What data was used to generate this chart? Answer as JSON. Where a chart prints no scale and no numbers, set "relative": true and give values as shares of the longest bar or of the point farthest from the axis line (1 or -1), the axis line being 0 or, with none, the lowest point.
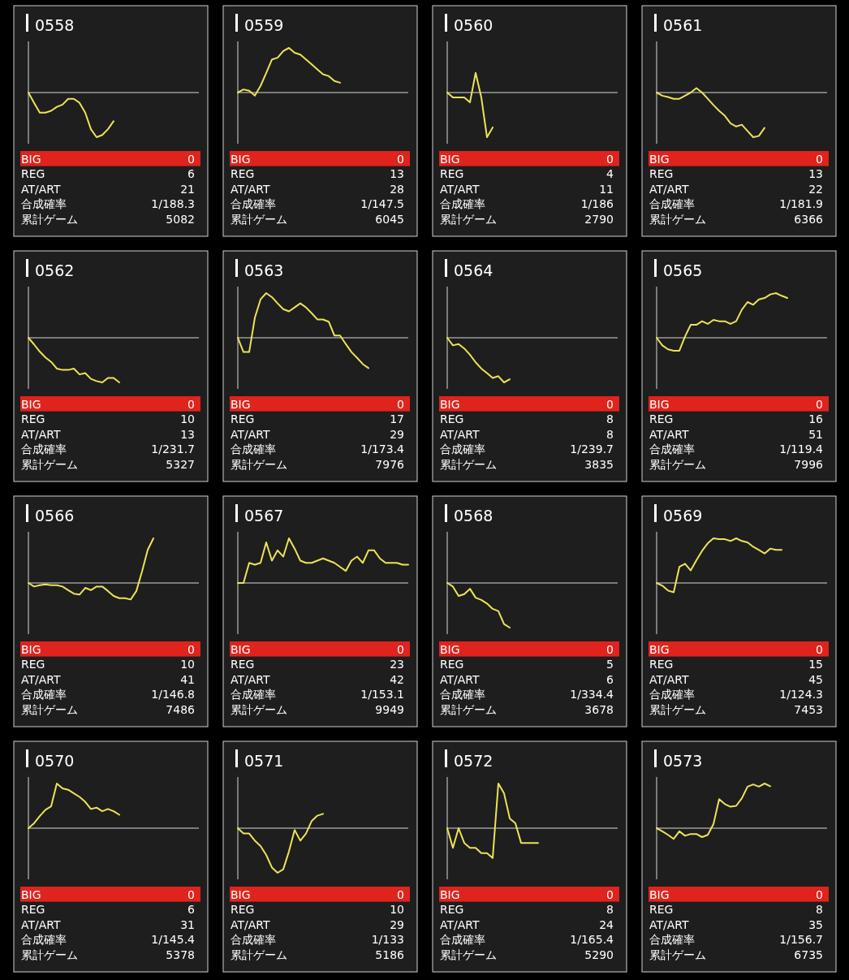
{
  "chart_data": [
    {
      "type": "line",
      "title": "0558",
      "relative": true,
      "color": "#ece357",
      "categories": [
        null,
        null,
        null,
        null,
        null,
        null,
        null,
        null,
        null,
        null,
        null,
        null,
        null,
        null,
        null,
        null,
        null,
        null,
        null,
        null,
        null,
        null,
        null,
        null,
        null,
        null,
        null,
        null,
        null,
        null,
        null
      ],
      "values": [
        0,
        -0.23,
        -0.45,
        -0.45,
        -0.41,
        -0.32,
        -0.27,
        -0.14,
        -0.14,
        -0.23,
        -0.45,
        -0.82,
        -1,
        -0.95,
        -0.82,
        -0.64,
        null,
        null,
        null,
        null,
        null,
        null,
        null,
        null,
        null,
        null,
        null,
        null,
        null,
        null,
        null
      ],
      "annotations": [
        "BIG",
        "0",
        "REG",
        "6",
        "AT/ART",
        "21",
        "合成確率",
        "1/188.3",
        "累計ゲーム",
        "5082"
      ]
    },
    {
      "type": "line",
      "title": "0559",
      "relative": true,
      "color": "#ece357",
      "categories": [
        null,
        null,
        null,
        null,
        null,
        null,
        null,
        null,
        null,
        null,
        null,
        null,
        null,
        null,
        null,
        null,
        null,
        null,
        null,
        null,
        null,
        null,
        null,
        null,
        null,
        null,
        null,
        null,
        null,
        null,
        null
      ],
      "values": [
        0,
        0.07,
        0.04,
        -0.07,
        0.15,
        0.44,
        0.74,
        0.78,
        0.93,
        1,
        0.89,
        0.85,
        0.74,
        0.63,
        0.52,
        0.41,
        0.37,
        0.26,
        0.22,
        null,
        null,
        null,
        null,
        null,
        null,
        null,
        null,
        null,
        null,
        null,
        null
      ],
      "annotations": [
        "BIG",
        "0",
        "REG",
        "13",
        "AT/ART",
        "28",
        "合成確率",
        "1/147.5",
        "累計ゲーム",
        "6045"
      ]
    },
    {
      "type": "line",
      "title": "0560",
      "relative": true,
      "color": "#ece357",
      "categories": [
        null,
        null,
        null,
        null,
        null,
        null,
        null,
        null,
        null,
        null,
        null,
        null,
        null,
        null,
        null,
        null,
        null,
        null,
        null,
        null,
        null,
        null,
        null,
        null,
        null,
        null,
        null,
        null,
        null,
        null,
        null
      ],
      "values": [
        0,
        -0.11,
        -0.11,
        -0.11,
        -0.22,
        0.44,
        -0.11,
        -1,
        -0.78,
        null,
        null,
        null,
        null,
        null,
        null,
        null,
        null,
        null,
        null,
        null,
        null,
        null,
        null,
        null,
        null,
        null,
        null,
        null,
        null,
        null,
        null
      ],
      "annotations": [
        "BIG",
        "0",
        "REG",
        "4",
        "AT/ART",
        "11",
        "合成確率",
        "1/186",
        "累計ゲーム",
        "2790"
      ]
    },
    {
      "type": "line",
      "title": "0561",
      "relative": true,
      "color": "#ece357",
      "categories": [
        null,
        null,
        null,
        null,
        null,
        null,
        null,
        null,
        null,
        null,
        null,
        null,
        null,
        null,
        null,
        null,
        null,
        null,
        null,
        null,
        null,
        null,
        null,
        null,
        null,
        null,
        null,
        null,
        null,
        null,
        null
      ],
      "values": [
        0,
        -0.07,
        -0.1,
        -0.14,
        -0.14,
        -0.07,
        0,
        0.1,
        0,
        -0.14,
        -0.28,
        -0.41,
        -0.52,
        -0.69,
        -0.76,
        -0.72,
        -0.86,
        -1,
        -0.97,
        -0.79,
        null,
        null,
        null,
        null,
        null,
        null,
        null,
        null,
        null,
        null,
        null
      ],
      "annotations": [
        "BIG",
        "0",
        "REG",
        "13",
        "AT/ART",
        "22",
        "合成確率",
        "1/181.9",
        "累計ゲーム",
        "6366"
      ]
    },
    {
      "type": "line",
      "title": "0562",
      "relative": true,
      "color": "#ece357",
      "categories": [
        null,
        null,
        null,
        null,
        null,
        null,
        null,
        null,
        null,
        null,
        null,
        null,
        null,
        null,
        null,
        null,
        null,
        null,
        null,
        null,
        null,
        null,
        null,
        null,
        null,
        null,
        null,
        null,
        null,
        null,
        null
      ],
      "values": [
        0,
        -0.15,
        -0.31,
        -0.44,
        -0.54,
        -0.69,
        -0.72,
        -0.72,
        -0.69,
        -0.82,
        -0.79,
        -0.92,
        -0.97,
        -1,
        -0.9,
        -0.9,
        -1,
        null,
        null,
        null,
        null,
        null,
        null,
        null,
        null,
        null,
        null,
        null,
        null,
        null,
        null
      ],
      "annotations": [
        "BIG",
        "0",
        "REG",
        "10",
        "AT/ART",
        "13",
        "合成確率",
        "1/231.7",
        "累計ゲーム",
        "5327"
      ]
    },
    {
      "type": "line",
      "title": "0563",
      "relative": true,
      "color": "#ece357",
      "categories": [
        null,
        null,
        null,
        null,
        null,
        null,
        null,
        null,
        null,
        null,
        null,
        null,
        null,
        null,
        null,
        null,
        null,
        null,
        null,
        null,
        null,
        null,
        null,
        null,
        null,
        null,
        null,
        null,
        null,
        null,
        null
      ],
      "values": [
        0,
        -0.32,
        -0.32,
        0.45,
        0.86,
        1,
        0.91,
        0.77,
        0.64,
        0.59,
        0.68,
        0.77,
        0.68,
        0.55,
        0.41,
        0.41,
        0.36,
        0.05,
        0.05,
        -0.14,
        -0.32,
        -0.45,
        -0.59,
        -0.68,
        null,
        null,
        null,
        null,
        null,
        null,
        null
      ],
      "annotations": [
        "BIG",
        "0",
        "REG",
        "17",
        "AT/ART",
        "29",
        "合成確率",
        "1/173.4",
        "累計ゲーム",
        "7976"
      ]
    },
    {
      "type": "line",
      "title": "0564",
      "relative": true,
      "color": "#ece357",
      "categories": [
        null,
        null,
        null,
        null,
        null,
        null,
        null,
        null,
        null,
        null,
        null,
        null,
        null,
        null,
        null,
        null,
        null,
        null,
        null,
        null,
        null,
        null,
        null,
        null,
        null,
        null,
        null,
        null,
        null,
        null,
        null
      ],
      "values": [
        0,
        -0.17,
        -0.14,
        -0.24,
        -0.38,
        -0.55,
        -0.69,
        -0.79,
        -0.9,
        -0.86,
        -1,
        -0.93,
        null,
        null,
        null,
        null,
        null,
        null,
        null,
        null,
        null,
        null,
        null,
        null,
        null,
        null,
        null,
        null,
        null,
        null,
        null
      ],
      "annotations": [
        "BIG",
        "0",
        "REG",
        "8",
        "AT/ART",
        "8",
        "合成確率",
        "1/239.7",
        "累計ゲーム",
        "3835"
      ]
    },
    {
      "type": "line",
      "title": "0565",
      "relative": true,
      "color": "#ece357",
      "categories": [
        null,
        null,
        null,
        null,
        null,
        null,
        null,
        null,
        null,
        null,
        null,
        null,
        null,
        null,
        null,
        null,
        null,
        null,
        null,
        null,
        null,
        null,
        null,
        null,
        null,
        null,
        null,
        null,
        null,
        null,
        null
      ],
      "values": [
        0,
        -0.17,
        -0.26,
        -0.29,
        -0.29,
        0.03,
        0.29,
        0.29,
        0.37,
        0.31,
        0.4,
        0.37,
        0.37,
        0.31,
        0.37,
        0.63,
        0.8,
        0.74,
        0.86,
        0.89,
        0.97,
        1,
        0.94,
        0.89,
        null,
        null,
        null,
        null,
        null,
        null,
        null
      ],
      "annotations": [
        "BIG",
        "0",
        "REG",
        "16",
        "AT/ART",
        "51",
        "合成確率",
        "1/119.4",
        "累計ゲーム",
        "7996"
      ]
    },
    {
      "type": "line",
      "title": "0566",
      "relative": true,
      "color": "#ece357",
      "categories": [
        null,
        null,
        null,
        null,
        null,
        null,
        null,
        null,
        null,
        null,
        null,
        null,
        null,
        null,
        null,
        null,
        null,
        null,
        null,
        null,
        null,
        null,
        null,
        null,
        null,
        null,
        null,
        null,
        null,
        null,
        null
      ],
      "values": [
        0,
        -0.08,
        -0.05,
        -0.03,
        -0.05,
        -0.05,
        -0.08,
        -0.16,
        -0.24,
        -0.26,
        -0.11,
        -0.16,
        -0.08,
        -0.08,
        -0.18,
        -0.29,
        -0.34,
        -0.34,
        -0.37,
        -0.18,
        0.26,
        0.74,
        1,
        null,
        null,
        null,
        null,
        null,
        null,
        null,
        null
      ],
      "annotations": [
        "BIG",
        "0",
        "REG",
        "10",
        "AT/ART",
        "41",
        "合成確率",
        "1/146.8",
        "累計ゲーム",
        "7486"
      ]
    },
    {
      "type": "line",
      "title": "0567",
      "relative": true,
      "color": "#ece357",
      "categories": [
        null,
        null,
        null,
        null,
        null,
        null,
        null,
        null,
        null,
        null,
        null,
        null,
        null,
        null,
        null,
        null,
        null,
        null,
        null,
        null,
        null,
        null,
        null,
        null,
        null,
        null,
        null,
        null,
        null,
        null,
        null
      ],
      "values": [
        0,
        0,
        0.45,
        0.41,
        0.45,
        0.91,
        0.5,
        0.73,
        0.59,
        1,
        0.77,
        0.5,
        0.45,
        0.45,
        0.5,
        0.55,
        0.5,
        0.45,
        0.36,
        0.27,
        0.5,
        0.59,
        0.45,
        0.73,
        0.73,
        0.55,
        0.45,
        0.45,
        0.45,
        0.41,
        0.41
      ],
      "annotations": [
        "BIG",
        "0",
        "REG",
        "23",
        "AT/ART",
        "42",
        "合成確率",
        "1/153.1",
        "累計ゲーム",
        "9949"
      ]
    },
    {
      "type": "line",
      "title": "0568",
      "relative": true,
      "color": "#ece357",
      "categories": [
        null,
        null,
        null,
        null,
        null,
        null,
        null,
        null,
        null,
        null,
        null,
        null,
        null,
        null,
        null,
        null,
        null,
        null,
        null,
        null,
        null,
        null,
        null,
        null,
        null,
        null,
        null,
        null,
        null,
        null,
        null
      ],
      "values": [
        0,
        -0.08,
        -0.29,
        -0.25,
        -0.13,
        -0.33,
        -0.38,
        -0.46,
        -0.58,
        -0.63,
        -0.92,
        -1,
        null,
        null,
        null,
        null,
        null,
        null,
        null,
        null,
        null,
        null,
        null,
        null,
        null,
        null,
        null,
        null,
        null,
        null,
        null
      ],
      "annotations": [
        "BIG",
        "0",
        "REG",
        "5",
        "AT/ART",
        "6",
        "合成確率",
        "1/334.4",
        "累計ゲーム",
        "3678"
      ]
    },
    {
      "type": "line",
      "title": "0569",
      "relative": true,
      "color": "#ece357",
      "categories": [
        null,
        null,
        null,
        null,
        null,
        null,
        null,
        null,
        null,
        null,
        null,
        null,
        null,
        null,
        null,
        null,
        null,
        null,
        null,
        null,
        null,
        null,
        null,
        null,
        null,
        null,
        null,
        null,
        null,
        null,
        null
      ],
      "values": [
        0,
        -0.06,
        -0.17,
        -0.21,
        0.36,
        0.43,
        0.28,
        0.51,
        0.72,
        0.89,
        1,
        0.98,
        0.98,
        0.94,
        1,
        0.94,
        0.91,
        0.81,
        0.74,
        0.66,
        0.77,
        0.74,
        0.74,
        null,
        null,
        null,
        null,
        null,
        null,
        null,
        null
      ],
      "annotations": [
        "BIG",
        "0",
        "REG",
        "15",
        "AT/ART",
        "45",
        "合成確率",
        "1/124.3",
        "累計ゲーム",
        "7453"
      ]
    },
    {
      "type": "line",
      "title": "0570",
      "relative": true,
      "color": "#ece357",
      "categories": [
        null,
        null,
        null,
        null,
        null,
        null,
        null,
        null,
        null,
        null,
        null,
        null,
        null,
        null,
        null,
        null,
        null,
        null,
        null,
        null,
        null,
        null,
        null,
        null,
        null,
        null,
        null,
        null,
        null,
        null,
        null
      ],
      "values": [
        0,
        0.11,
        0.27,
        0.41,
        0.49,
        1,
        0.89,
        0.86,
        0.78,
        0.7,
        0.59,
        0.43,
        0.46,
        0.38,
        0.43,
        0.38,
        0.3,
        null,
        null,
        null,
        null,
        null,
        null,
        null,
        null,
        null,
        null,
        null,
        null,
        null,
        null
      ],
      "annotations": [
        "BIG",
        "0",
        "REG",
        "6",
        "AT/ART",
        "31",
        "合成確率",
        "1/145.4",
        "累計ゲーム",
        "5378"
      ]
    },
    {
      "type": "line",
      "title": "0571",
      "relative": true,
      "color": "#ece357",
      "categories": [
        null,
        null,
        null,
        null,
        null,
        null,
        null,
        null,
        null,
        null,
        null,
        null,
        null,
        null,
        null,
        null,
        null,
        null,
        null,
        null,
        null,
        null,
        null,
        null,
        null,
        null,
        null,
        null,
        null,
        null,
        null
      ],
      "values": [
        0,
        -0.12,
        -0.12,
        -0.28,
        -0.4,
        -0.6,
        -0.88,
        -1,
        -0.92,
        -0.52,
        -0.04,
        -0.28,
        -0.12,
        0.16,
        0.28,
        0.32,
        null,
        null,
        null,
        null,
        null,
        null,
        null,
        null,
        null,
        null,
        null,
        null,
        null,
        null,
        null
      ],
      "annotations": [
        "BIG",
        "0",
        "REG",
        "10",
        "AT/ART",
        "29",
        "合成確率",
        "1/133",
        "累計ゲーム",
        "5186"
      ]
    },
    {
      "type": "line",
      "title": "0572",
      "relative": true,
      "color": "#ece357",
      "categories": [
        null,
        null,
        null,
        null,
        null,
        null,
        null,
        null,
        null,
        null,
        null,
        null,
        null,
        null,
        null,
        null,
        null,
        null,
        null,
        null,
        null,
        null,
        null,
        null,
        null,
        null,
        null,
        null,
        null,
        null,
        null
      ],
      "values": [
        0,
        -0.44,
        0,
        -0.33,
        -0.44,
        -0.44,
        -0.56,
        -0.56,
        -0.67,
        1,
        0.78,
        0.22,
        0.11,
        -0.33,
        -0.33,
        -0.33,
        -0.33,
        null,
        null,
        null,
        null,
        null,
        null,
        null,
        null,
        null,
        null,
        null,
        null,
        null,
        null
      ],
      "annotations": [
        "BIG",
        "0",
        "REG",
        "8",
        "AT/ART",
        "24",
        "合成確率",
        "1/165.4",
        "累計ゲーム",
        "5290"
      ]
    },
    {
      "type": "line",
      "title": "0573",
      "relative": true,
      "color": "#ece357",
      "categories": [
        null,
        null,
        null,
        null,
        null,
        null,
        null,
        null,
        null,
        null,
        null,
        null,
        null,
        null,
        null,
        null,
        null,
        null,
        null,
        null,
        null,
        null,
        null,
        null,
        null,
        null,
        null,
        null,
        null,
        null,
        null
      ],
      "values": [
        0,
        -0.07,
        -0.15,
        -0.24,
        -0.07,
        -0.17,
        -0.13,
        -0.13,
        -0.2,
        -0.15,
        0.09,
        0.65,
        0.54,
        0.48,
        0.5,
        0.67,
        0.93,
        0.98,
        0.93,
        1,
        0.94,
        null,
        null,
        null,
        null,
        null,
        null,
        null,
        null,
        null,
        null
      ],
      "annotations": [
        "BIG",
        "0",
        "REG",
        "8",
        "AT/ART",
        "35",
        "合成確率",
        "1/156.7",
        "累計ゲーム",
        "6735"
      ]
    }
  ]
}
